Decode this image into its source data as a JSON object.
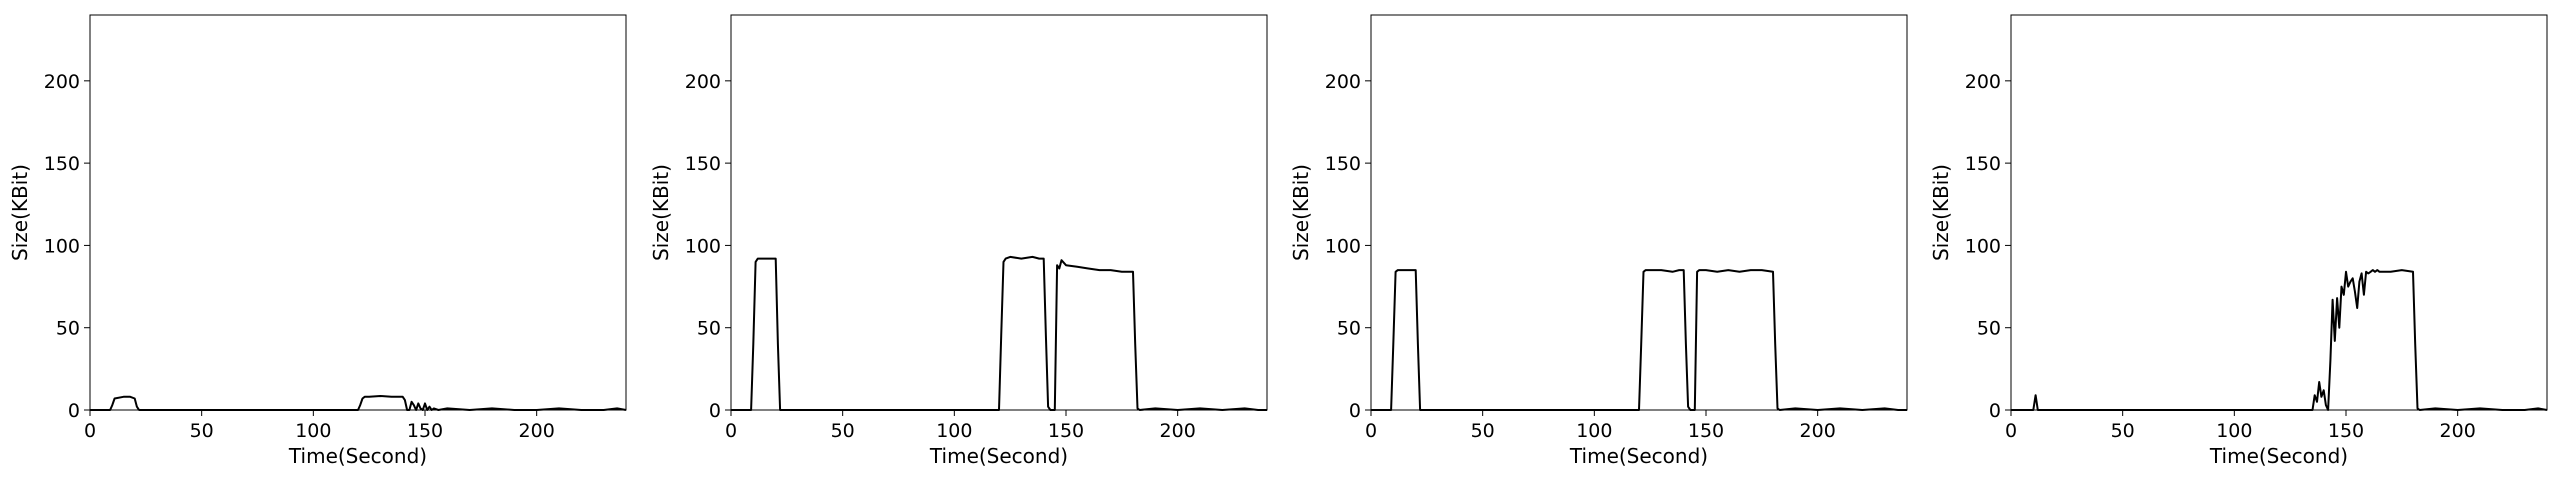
{
  "figure": {
    "background": "#ffffff",
    "line_color": "#000000"
  },
  "chart_data": [
    {
      "type": "line",
      "title": "",
      "xlabel": "Time(Second)",
      "ylabel": "Size(KBit)",
      "xlim": [
        0,
        240
      ],
      "ylim": [
        0,
        240
      ],
      "xticks": [
        0,
        50,
        100,
        150,
        200
      ],
      "yticks": [
        0,
        50,
        100,
        150,
        200
      ],
      "grid": false,
      "series": [
        {
          "x": [
            0,
            9,
            10,
            11,
            15,
            18,
            20,
            21,
            22,
            40,
            60,
            80,
            100,
            120,
            121,
            122,
            123,
            125,
            130,
            135,
            138,
            140,
            141,
            142,
            143,
            144,
            145,
            146,
            147,
            148,
            149,
            150,
            151,
            152,
            153,
            154,
            156,
            160,
            170,
            180,
            190,
            200,
            210,
            220,
            230,
            236,
            240
          ],
          "y": [
            0,
            0,
            3,
            7,
            8,
            8,
            7,
            2,
            0,
            0,
            0,
            0,
            0,
            0,
            3,
            7,
            8,
            8,
            8.5,
            8,
            8,
            8,
            6,
            0,
            0,
            5,
            3,
            0,
            4,
            1,
            0,
            4,
            0,
            2,
            0,
            1,
            0,
            1,
            0,
            1,
            0,
            0,
            1,
            0,
            0,
            1,
            0
          ]
        }
      ]
    },
    {
      "type": "line",
      "title": "",
      "xlabel": "Time(Second)",
      "ylabel": "Size(KBit)",
      "xlim": [
        0,
        240
      ],
      "ylim": [
        0,
        240
      ],
      "xticks": [
        0,
        50,
        100,
        150,
        200
      ],
      "yticks": [
        0,
        50,
        100,
        150,
        200
      ],
      "grid": false,
      "series": [
        {
          "x": [
            0,
            9,
            10,
            11,
            12,
            15,
            18,
            20,
            21,
            22,
            23,
            40,
            60,
            80,
            100,
            120,
            121,
            122,
            123,
            125,
            130,
            135,
            138,
            140,
            141,
            142,
            143,
            144,
            145,
            146,
            147,
            148,
            150,
            155,
            160,
            165,
            170,
            175,
            180,
            181,
            182,
            183,
            190,
            200,
            210,
            220,
            230,
            236,
            240
          ],
          "y": [
            0,
            0,
            40,
            90,
            92,
            92,
            92,
            92,
            40,
            0,
            0,
            0,
            0,
            0,
            0,
            0,
            45,
            90,
            92,
            93,
            92,
            93,
            92,
            92,
            45,
            2,
            0,
            0,
            0,
            88,
            86,
            91,
            88,
            87,
            86,
            85,
            85,
            84,
            84,
            40,
            1,
            0,
            1,
            0,
            1,
            0,
            1,
            0,
            0
          ]
        }
      ]
    },
    {
      "type": "line",
      "title": "",
      "xlabel": "Time(Second)",
      "ylabel": "Size(KBit)",
      "xlim": [
        0,
        240
      ],
      "ylim": [
        0,
        240
      ],
      "xticks": [
        0,
        50,
        100,
        150,
        200
      ],
      "yticks": [
        0,
        50,
        100,
        150,
        200
      ],
      "grid": false,
      "series": [
        {
          "x": [
            0,
            9,
            10,
            11,
            12,
            15,
            18,
            20,
            21,
            22,
            23,
            40,
            60,
            80,
            100,
            120,
            121,
            122,
            123,
            125,
            130,
            135,
            138,
            140,
            141,
            142,
            143,
            144,
            145,
            146,
            147,
            150,
            155,
            160,
            165,
            170,
            175,
            180,
            181,
            182,
            183,
            190,
            200,
            210,
            220,
            230,
            236,
            240
          ],
          "y": [
            0,
            0,
            40,
            84,
            85,
            85,
            85,
            85,
            40,
            0,
            0,
            0,
            0,
            0,
            0,
            0,
            40,
            84,
            85,
            85,
            85,
            84,
            85,
            85,
            40,
            2,
            0,
            0,
            0,
            84,
            85,
            85,
            84,
            85,
            84,
            85,
            85,
            84,
            40,
            1,
            0,
            1,
            0,
            1,
            0,
            1,
            0,
            0
          ]
        }
      ]
    },
    {
      "type": "line",
      "title": "",
      "xlabel": "Time(Second)",
      "ylabel": "Size(KBit)",
      "xlim": [
        0,
        240
      ],
      "ylim": [
        0,
        240
      ],
      "xticks": [
        0,
        50,
        100,
        150,
        200
      ],
      "yticks": [
        0,
        50,
        100,
        150,
        200
      ],
      "grid": false,
      "series": [
        {
          "x": [
            0,
            10,
            11,
            12,
            20,
            40,
            60,
            80,
            100,
            120,
            130,
            135,
            136,
            137,
            138,
            139,
            140,
            141,
            142,
            143,
            144,
            145,
            146,
            147,
            148,
            149,
            150,
            151,
            152,
            153,
            154,
            155,
            156,
            157,
            158,
            159,
            160,
            161,
            162,
            163,
            164,
            165,
            170,
            175,
            180,
            181,
            182,
            183,
            190,
            200,
            210,
            220,
            230,
            236,
            240
          ],
          "y": [
            0,
            0,
            9,
            0,
            0,
            0,
            0,
            0,
            0,
            0,
            0,
            0,
            9,
            5,
            17,
            8,
            12,
            3,
            0,
            30,
            67,
            42,
            68,
            50,
            75,
            70,
            84,
            75,
            78,
            80,
            72,
            62,
            78,
            83,
            70,
            84,
            83,
            84,
            85,
            84,
            85,
            84,
            84,
            85,
            84,
            40,
            1,
            0,
            1,
            0,
            1,
            0,
            0,
            1,
            0
          ]
        }
      ]
    }
  ]
}
